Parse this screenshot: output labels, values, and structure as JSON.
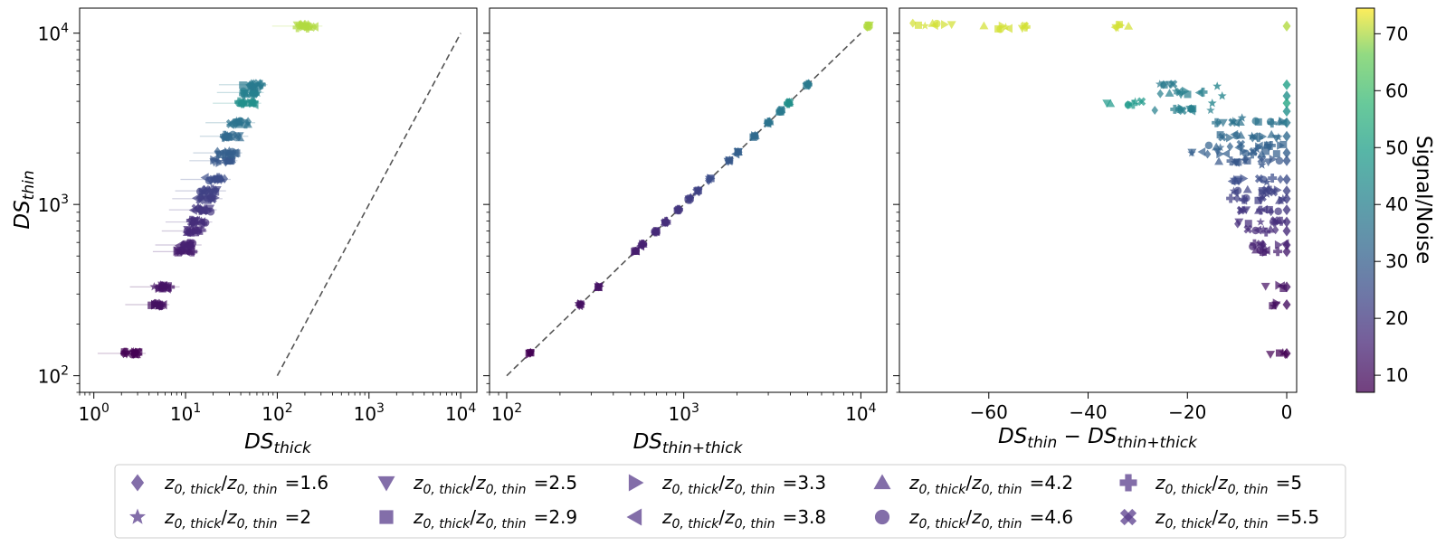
{
  "chart_data": [
    {
      "type": "scatter",
      "xscale": "log",
      "yscale": "log",
      "xlabel": {
        "base": "DS",
        "sub": "thick"
      },
      "ylabel": {
        "base": "DS",
        "sub": "thin"
      },
      "xlim": [
        0.7,
        15000
      ],
      "ylim": [
        80,
        14000
      ],
      "xticks": [
        1,
        10,
        100,
        1000,
        10000
      ],
      "xtick_labels": [
        {
          "b": "10",
          "e": "0"
        },
        {
          "b": "10",
          "e": "1"
        },
        {
          "b": "10",
          "e": "2"
        },
        {
          "b": "10",
          "e": "3"
        },
        {
          "b": "10",
          "e": "4"
        }
      ],
      "yticks": [
        100,
        1000,
        10000
      ],
      "ytick_labels": [
        {
          "b": "10",
          "e": "2"
        },
        {
          "b": "10",
          "e": "3"
        },
        {
          "b": "10",
          "e": "4"
        }
      ],
      "reference_line": {
        "x": [
          100,
          10000
        ],
        "y": [
          100,
          10000
        ]
      },
      "clusters": [
        {
          "y": 135,
          "x_range": [
            2.0,
            3.2
          ],
          "sn": 7
        },
        {
          "y": 260,
          "x_range": [
            4.0,
            5.8
          ],
          "sn": 10
        },
        {
          "y": 330,
          "x_range": [
            4.5,
            7.5
          ],
          "sn": 11
        },
        {
          "y": 530,
          "x_range": [
            8.0,
            12
          ],
          "sn": 13
        },
        {
          "y": 580,
          "x_range": [
            8.5,
            13
          ],
          "sn": 14
        },
        {
          "y": 700,
          "x_range": [
            10,
            15
          ],
          "sn": 16
        },
        {
          "y": 790,
          "x_range": [
            11,
            17
          ],
          "sn": 17
        },
        {
          "y": 930,
          "x_range": [
            12,
            19
          ],
          "sn": 19
        },
        {
          "y": 1080,
          "x_range": [
            13,
            22
          ],
          "sn": 21
        },
        {
          "y": 1200,
          "x_range": [
            14,
            24
          ],
          "sn": 22
        },
        {
          "y": 1400,
          "x_range": [
            16,
            27
          ],
          "sn": 25
        },
        {
          "y": 1800,
          "x_range": [
            20,
            32
          ],
          "sn": 28
        },
        {
          "y": 2000,
          "x_range": [
            22,
            36
          ],
          "sn": 30
        },
        {
          "y": 2500,
          "x_range": [
            26,
            42
          ],
          "sn": 33
        },
        {
          "y": 3000,
          "x_range": [
            30,
            50
          ],
          "sn": 36
        },
        {
          "y": 3900,
          "x_range": [
            36,
            58
          ],
          "sn": 45
        },
        {
          "y": 4500,
          "x_range": [
            40,
            62
          ],
          "sn": 40
        },
        {
          "y": 5000,
          "x_range": [
            42,
            68
          ],
          "sn": 38
        },
        {
          "y": 11000,
          "x_range": [
            160,
            270
          ],
          "sn": 70
        }
      ]
    },
    {
      "type": "scatter",
      "xscale": "log",
      "yscale": "log",
      "xlabel": {
        "base": "DS",
        "sub": "thin+thick"
      },
      "xlim": [
        80,
        14000
      ],
      "ylim": [
        80,
        14000
      ],
      "xticks": [
        100,
        1000,
        10000
      ],
      "xtick_labels": [
        {
          "b": "10",
          "e": "2"
        },
        {
          "b": "10",
          "e": "3"
        },
        {
          "b": "10",
          "e": "4"
        }
      ],
      "yticks": [
        100,
        1000,
        10000
      ],
      "reference_line": {
        "x": [
          100,
          10000
        ],
        "y": [
          100,
          10000
        ]
      },
      "points_on_identity": [
        {
          "v": 135,
          "sn": 7
        },
        {
          "v": 260,
          "sn": 10
        },
        {
          "v": 330,
          "sn": 11
        },
        {
          "v": 530,
          "sn": 13
        },
        {
          "v": 580,
          "sn": 14
        },
        {
          "v": 700,
          "sn": 16
        },
        {
          "v": 790,
          "sn": 17
        },
        {
          "v": 930,
          "sn": 19
        },
        {
          "v": 1080,
          "sn": 21
        },
        {
          "v": 1200,
          "sn": 22
        },
        {
          "v": 1400,
          "sn": 25
        },
        {
          "v": 1800,
          "sn": 28
        },
        {
          "v": 2000,
          "sn": 30
        },
        {
          "v": 2500,
          "sn": 33
        },
        {
          "v": 3000,
          "sn": 36
        },
        {
          "v": 3500,
          "sn": 38
        },
        {
          "v": 3900,
          "sn": 45
        },
        {
          "v": 5000,
          "sn": 38
        },
        {
          "v": 11000,
          "sn": 70
        }
      ]
    },
    {
      "type": "scatter",
      "xscale": "linear",
      "yscale": "log",
      "xlabel": {
        "base": "DS",
        "sub": "thin",
        "op": " − ",
        "base2": "DS",
        "sub2": "thin+thick"
      },
      "xlim": [
        -78,
        2
      ],
      "ylim": [
        80,
        14000
      ],
      "xticks": [
        -60,
        -40,
        -20,
        0
      ],
      "xtick_labels": [
        "−60",
        "−40",
        "−20",
        "0"
      ],
      "yticks": [
        100,
        1000,
        10000
      ],
      "clusters": [
        {
          "y": 135,
          "x_range": [
            -3.5,
            0
          ],
          "sn": 7
        },
        {
          "y": 260,
          "x_range": [
            -4.5,
            0
          ],
          "sn": 10
        },
        {
          "y": 330,
          "x_range": [
            -4.5,
            0
          ],
          "sn": 11
        },
        {
          "y": 530,
          "x_range": [
            -7,
            0
          ],
          "sn": 13
        },
        {
          "y": 580,
          "x_range": [
            -7.5,
            0
          ],
          "sn": 14
        },
        {
          "y": 700,
          "x_range": [
            -8,
            0
          ],
          "sn": 16
        },
        {
          "y": 790,
          "x_range": [
            -10,
            0
          ],
          "sn": 17
        },
        {
          "y": 930,
          "x_range": [
            -11,
            0
          ],
          "sn": 19
        },
        {
          "y": 1080,
          "x_range": [
            -12,
            0
          ],
          "sn": 21
        },
        {
          "y": 1200,
          "x_range": [
            -12,
            0
          ],
          "sn": 22
        },
        {
          "y": 1400,
          "x_range": [
            -11,
            0
          ],
          "sn": 25
        },
        {
          "y": 1800,
          "x_range": [
            -14,
            0
          ],
          "sn": 28
        },
        {
          "y": 2000,
          "x_range": [
            -20,
            0
          ],
          "sn": 30
        },
        {
          "y": 2200,
          "x_range": [
            -16,
            0
          ],
          "sn": 31
        },
        {
          "y": 2500,
          "x_range": [
            -14,
            0
          ],
          "sn": 33
        },
        {
          "y": 3000,
          "x_range": [
            -15,
            0
          ],
          "sn": 36
        },
        {
          "y": 3900,
          "x_range": [
            -37,
            -29
          ],
          "sn": 48
        },
        {
          "y": 3600,
          "x_range": [
            -27,
            -15
          ],
          "sn": 40
        },
        {
          "y": 4500,
          "x_range": [
            -26,
            -16
          ],
          "sn": 40
        },
        {
          "y": 5000,
          "x_range": [
            -28,
            -22
          ],
          "sn": 38
        },
        {
          "y": 11200,
          "x_range": [
            -76,
            -67
          ],
          "sn": 72
        },
        {
          "y": 10800,
          "x_range": [
            -61,
            -51
          ],
          "sn": 72
        },
        {
          "y": 11000,
          "x_range": [
            -37,
            -31
          ],
          "sn": 72
        }
      ],
      "stars_extra": [
        {
          "x": -14,
          "y": 4900,
          "sn": 42
        },
        {
          "x": -13,
          "y": 4300,
          "sn": 42
        },
        {
          "x": -15,
          "y": 3900,
          "sn": 42
        },
        {
          "x": -9,
          "y": 3200,
          "sn": 36
        },
        {
          "x": -7,
          "y": 2500,
          "sn": 33
        },
        {
          "x": -6,
          "y": 2100,
          "sn": 30
        },
        {
          "x": -5,
          "y": 1700,
          "sn": 28
        },
        {
          "x": -4,
          "y": 1350,
          "sn": 25
        },
        {
          "x": -4,
          "y": 1150,
          "sn": 22
        }
      ],
      "zero_column": [
        {
          "y": 11000,
          "sn": 70
        },
        {
          "y": 5000,
          "sn": 50
        },
        {
          "y": 4300,
          "sn": 45
        },
        {
          "y": 3900,
          "sn": 52
        },
        {
          "y": 3500,
          "sn": 45
        },
        {
          "y": 3000,
          "sn": 38
        },
        {
          "y": 2500,
          "sn": 33
        },
        {
          "y": 2000,
          "sn": 30
        },
        {
          "y": 1800,
          "sn": 28
        },
        {
          "y": 1400,
          "sn": 25
        },
        {
          "y": 1200,
          "sn": 22
        },
        {
          "y": 1080,
          "sn": 21
        },
        {
          "y": 930,
          "sn": 19
        },
        {
          "y": 790,
          "sn": 17
        },
        {
          "y": 700,
          "sn": 16
        },
        {
          "y": 580,
          "sn": 14
        },
        {
          "y": 530,
          "sn": 13
        },
        {
          "y": 330,
          "sn": 11
        },
        {
          "y": 260,
          "sn": 10
        },
        {
          "y": 135,
          "sn": 7
        }
      ]
    }
  ],
  "colorbar": {
    "label": "Signal/Noise",
    "min": 7,
    "max": 74.5,
    "ticks": [
      10,
      20,
      30,
      40,
      50,
      60,
      70
    ],
    "tick_labels": [
      "10",
      "20",
      "30",
      "40",
      "50",
      "60",
      "70"
    ]
  },
  "legend": {
    "placement": "bottom-center",
    "marker_color": "#5a3d8c",
    "ratio_label": {
      "base1": "z",
      "sub1": "0, thick",
      "sep": "/",
      "base2": "z",
      "sub2": "0, thin"
    },
    "entries": [
      {
        "value": "=1.6",
        "marker": "diamond"
      },
      {
        "value": "=2",
        "marker": "star"
      },
      {
        "value": "=2.5",
        "marker": "triangle-down"
      },
      {
        "value": "=2.9",
        "marker": "square"
      },
      {
        "value": "=3.3",
        "marker": "triangle-right"
      },
      {
        "value": "=3.8",
        "marker": "triangle-left"
      },
      {
        "value": "=4.2",
        "marker": "triangle-up"
      },
      {
        "value": "=4.6",
        "marker": "circle"
      },
      {
        "value": "=5",
        "marker": "plus"
      },
      {
        "value": "=5.5",
        "marker": "x"
      }
    ]
  }
}
